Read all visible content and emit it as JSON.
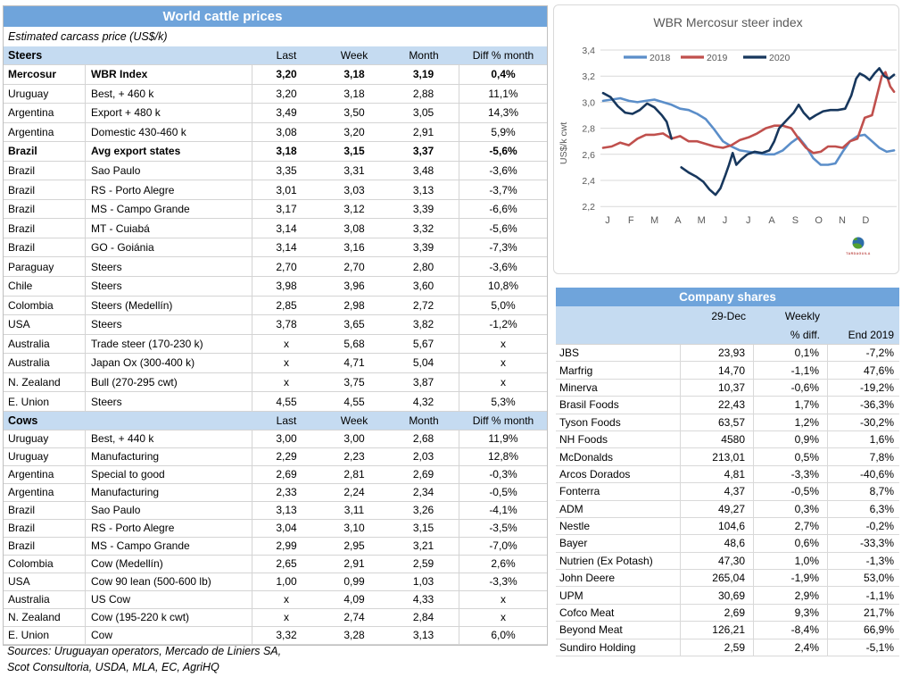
{
  "colors": {
    "title_bar_blue": "#6FA4DB",
    "header_band_blue": "#C5DBF1",
    "grid_gray": "#D4D4D4",
    "axis_text_gray": "#595959",
    "series_2018": "#5B8EC9",
    "series_2019": "#C0504D",
    "series_2020": "#17375D",
    "logo_red": "#BE4B48"
  },
  "cattle_table": {
    "title": "World cattle prices",
    "subtitle": "Estimated carcass price (US$/k)",
    "columns": [
      "Last",
      "Week",
      "Month",
      "Diff % month"
    ],
    "sections": [
      {
        "label": "Steers",
        "rows": [
          {
            "c1": "Mercosur",
            "c2": "WBR Index",
            "last": "3,20",
            "week": "3,18",
            "month": "3,19",
            "diff": "0,4%",
            "cls": "bold"
          },
          {
            "c1": "Uruguay",
            "c2": "Best, + 460 k",
            "last": "3,20",
            "week": "3,18",
            "month": "2,88",
            "diff": "11,1%"
          },
          {
            "c1": "Argentina",
            "c2": "Export + 480 k",
            "last": "3,49",
            "week": "3,50",
            "month": "3,05",
            "diff": "14,3%"
          },
          {
            "c1": "Argentina",
            "c2": "Domestic 430-460 k",
            "last": "3,08",
            "week": "3,20",
            "month": "2,91",
            "diff": "5,9%"
          },
          {
            "c1": "Brazil",
            "c2": "Avg export states",
            "last": "3,18",
            "week": "3,15",
            "month": "3,37",
            "diff": "-5,6%",
            "cls": "bold"
          },
          {
            "c1": "Brazil",
            "c2": "Sao Paulo",
            "last": "3,35",
            "week": "3,31",
            "month": "3,48",
            "diff": "-3,6%"
          },
          {
            "c1": "Brazil",
            "c2": "RS - Porto Alegre",
            "last": "3,01",
            "week": "3,03",
            "month": "3,13",
            "diff": "-3,7%"
          },
          {
            "c1": "Brazil",
            "c2": "MS - Campo Grande",
            "last": "3,17",
            "week": "3,12",
            "month": "3,39",
            "diff": "-6,6%"
          },
          {
            "c1": "Brazil",
            "c2": "MT - Cuiabá",
            "last": "3,14",
            "week": "3,08",
            "month": "3,32",
            "diff": "-5,6%"
          },
          {
            "c1": "Brazil",
            "c2": "GO - Goiánia",
            "last": "3,14",
            "week": "3,16",
            "month": "3,39",
            "diff": "-7,3%"
          },
          {
            "c1": "Paraguay",
            "c2": "Steers",
            "last": "2,70",
            "week": "2,70",
            "month": "2,80",
            "diff": "-3,6%"
          },
          {
            "c1": "Chile",
            "c2": "Steers",
            "last": "3,98",
            "week": "3,96",
            "month": "3,60",
            "diff": "10,8%"
          },
          {
            "c1": "Colombia",
            "c2": "Steers (Medellín)",
            "last": "2,85",
            "week": "2,98",
            "month": "2,72",
            "diff": "5,0%"
          },
          {
            "c1": "USA",
            "c2": "Steers",
            "last": "3,78",
            "week": "3,65",
            "month": "3,82",
            "diff": "-1,2%"
          },
          {
            "c1": "Australia",
            "c2": "Trade steer (170-230 k)",
            "last": "x",
            "week": "5,68",
            "month": "5,67",
            "diff": "x"
          },
          {
            "c1": "Australia",
            "c2": "Japan Ox (300-400 k)",
            "last": "x",
            "week": "4,71",
            "month": "5,04",
            "diff": "x"
          },
          {
            "c1": "N. Zealand",
            "c2": "Bull (270-295 cwt)",
            "last": "x",
            "week": "3,75",
            "month": "3,87",
            "diff": "x"
          },
          {
            "c1": "E. Union",
            "c2": "Steers",
            "last": "4,55",
            "week": "4,55",
            "month": "4,32",
            "diff": "5,3%"
          }
        ]
      },
      {
        "label": "Cows",
        "rows": [
          {
            "c1": "Uruguay",
            "c2": "Best, + 440 k",
            "last": "3,00",
            "week": "3,00",
            "month": "2,68",
            "diff": "11,9%"
          },
          {
            "c1": "Uruguay",
            "c2": "Manufacturing",
            "last": "2,29",
            "week": "2,23",
            "month": "2,03",
            "diff": "12,8%"
          },
          {
            "c1": "Argentina",
            "c2": "Special to good",
            "last": "2,69",
            "week": "2,81",
            "month": "2,69",
            "diff": "-0,3%"
          },
          {
            "c1": "Argentina",
            "c2": "Manufacturing",
            "last": "2,33",
            "week": "2,24",
            "month": "2,34",
            "diff": "-0,5%"
          },
          {
            "c1": "Brazil",
            "c2": "Sao Paulo",
            "last": "3,13",
            "week": "3,11",
            "month": "3,26",
            "diff": "-4,1%"
          },
          {
            "c1": "Brazil",
            "c2": "RS - Porto Alegre",
            "last": "3,04",
            "week": "3,10",
            "month": "3,15",
            "diff": "-3,5%"
          },
          {
            "c1": "Brazil",
            "c2": "MS - Campo Grande",
            "last": "2,99",
            "week": "2,95",
            "month": "3,21",
            "diff": "-7,0%"
          },
          {
            "c1": "Colombia",
            "c2": "Cow (Medellín)",
            "last": "2,65",
            "week": "2,91",
            "month": "2,59",
            "diff": "2,6%"
          },
          {
            "c1": "USA",
            "c2": "Cow 90 lean (500-600 lb)",
            "last": "1,00",
            "week": "0,99",
            "month": "1,03",
            "diff": "-3,3%"
          },
          {
            "c1": "Australia",
            "c2": "US Cow",
            "last": "x",
            "week": "4,09",
            "month": "4,33",
            "diff": "x"
          },
          {
            "c1": "N. Zealand",
            "c2": "Cow (195-220 k cwt)",
            "last": "x",
            "week": "2,74",
            "month": "2,84",
            "diff": "x"
          },
          {
            "c1": "E. Union",
            "c2": "Cow",
            "last": "3,32",
            "week": "3,28",
            "month": "3,13",
            "diff": "6,0%"
          }
        ]
      }
    ],
    "sources_line1": "Sources: Uruguayan operators, Mercado de Liniers SA,",
    "sources_line2": "Scot Consultoria, USDA, MLA, EC, AgriHQ"
  },
  "chart_data": {
    "type": "line",
    "title": "WBR Mercosur steer index",
    "ylabel": "US$/k cwt",
    "ylim": [
      2.2,
      3.4
    ],
    "yticks": [
      3.4,
      3.2,
      3.0,
      2.8,
      2.6,
      2.4,
      2.2
    ],
    "ytick_labels": [
      "3,4",
      "3,2",
      "3,0",
      "2,8",
      "2,6",
      "2,4",
      "2,2"
    ],
    "xlabels": [
      "J",
      "F",
      "M",
      "A",
      "M",
      "J",
      "J",
      "A",
      "S",
      "O",
      "N",
      "D"
    ],
    "x_unit": "month, 0 = early Jan to 11.9 = late Dec",
    "grid": true,
    "legend_position": "top",
    "logo_text": "TARDAGUILA",
    "series": [
      {
        "name": "2018",
        "color": "#5B8EC9",
        "segments": [
          [
            [
              0.0,
              3.01
            ],
            [
              0.35,
              3.02
            ],
            [
              0.7,
              3.03
            ],
            [
              1.05,
              3.01
            ],
            [
              1.4,
              3.0
            ],
            [
              1.75,
              3.01
            ],
            [
              2.1,
              3.02
            ],
            [
              2.45,
              3.0
            ],
            [
              2.8,
              2.98
            ],
            [
              3.15,
              2.95
            ],
            [
              3.5,
              2.94
            ],
            [
              3.85,
              2.91
            ],
            [
              4.2,
              2.87
            ],
            [
              4.55,
              2.79
            ],
            [
              4.9,
              2.7
            ],
            [
              5.25,
              2.66
            ],
            [
              5.6,
              2.63
            ],
            [
              5.95,
              2.62
            ],
            [
              6.3,
              2.61
            ],
            [
              6.65,
              2.6
            ],
            [
              7.0,
              2.6
            ],
            [
              7.35,
              2.63
            ],
            [
              7.7,
              2.69
            ],
            [
              8.0,
              2.73
            ],
            [
              8.3,
              2.66
            ],
            [
              8.6,
              2.57
            ],
            [
              8.9,
              2.52
            ],
            [
              9.2,
              2.52
            ],
            [
              9.5,
              2.53
            ],
            [
              9.8,
              2.62
            ],
            [
              10.1,
              2.7
            ],
            [
              10.4,
              2.74
            ],
            [
              10.7,
              2.75
            ],
            [
              11.0,
              2.7
            ],
            [
              11.3,
              2.65
            ],
            [
              11.6,
              2.62
            ],
            [
              11.9,
              2.63
            ]
          ]
        ]
      },
      {
        "name": "2019",
        "color": "#C0504D",
        "segments": [
          [
            [
              0.0,
              2.65
            ],
            [
              0.35,
              2.66
            ],
            [
              0.7,
              2.69
            ],
            [
              1.05,
              2.67
            ],
            [
              1.4,
              2.72
            ],
            [
              1.75,
              2.75
            ],
            [
              2.1,
              2.75
            ],
            [
              2.45,
              2.76
            ],
            [
              2.8,
              2.72
            ],
            [
              3.15,
              2.74
            ],
            [
              3.5,
              2.7
            ],
            [
              3.85,
              2.7
            ],
            [
              4.2,
              2.68
            ],
            [
              4.55,
              2.66
            ],
            [
              4.9,
              2.65
            ],
            [
              5.25,
              2.67
            ],
            [
              5.6,
              2.71
            ],
            [
              5.95,
              2.73
            ],
            [
              6.3,
              2.76
            ],
            [
              6.65,
              2.8
            ],
            [
              7.0,
              2.82
            ],
            [
              7.35,
              2.82
            ],
            [
              7.7,
              2.8
            ],
            [
              8.0,
              2.72
            ],
            [
              8.3,
              2.65
            ],
            [
              8.6,
              2.61
            ],
            [
              8.9,
              2.62
            ],
            [
              9.2,
              2.66
            ],
            [
              9.5,
              2.66
            ],
            [
              9.8,
              2.65
            ],
            [
              10.1,
              2.7
            ],
            [
              10.4,
              2.72
            ],
            [
              10.7,
              2.88
            ],
            [
              11.0,
              2.9
            ],
            [
              11.2,
              3.05
            ],
            [
              11.4,
              3.2
            ],
            [
              11.55,
              3.23
            ],
            [
              11.75,
              3.12
            ],
            [
              11.9,
              3.08
            ]
          ]
        ]
      },
      {
        "name": "2020",
        "color": "#17375D",
        "segments": [
          [
            [
              0.0,
              3.07
            ],
            [
              0.3,
              3.04
            ],
            [
              0.6,
              2.97
            ],
            [
              0.9,
              2.92
            ],
            [
              1.2,
              2.91
            ],
            [
              1.5,
              2.94
            ],
            [
              1.8,
              2.99
            ],
            [
              2.1,
              2.96
            ],
            [
              2.4,
              2.9
            ],
            [
              2.6,
              2.85
            ],
            [
              2.8,
              2.72
            ]
          ],
          [
            [
              3.2,
              2.5
            ],
            [
              3.5,
              2.46
            ],
            [
              3.8,
              2.43
            ],
            [
              4.1,
              2.39
            ],
            [
              4.35,
              2.33
            ],
            [
              4.6,
              2.29
            ],
            [
              4.8,
              2.34
            ],
            [
              5.0,
              2.44
            ],
            [
              5.15,
              2.52
            ],
            [
              5.3,
              2.61
            ],
            [
              5.45,
              2.52
            ],
            [
              5.65,
              2.56
            ],
            [
              5.9,
              2.6
            ],
            [
              6.2,
              2.62
            ],
            [
              6.5,
              2.61
            ],
            [
              6.8,
              2.63
            ],
            [
              7.0,
              2.7
            ],
            [
              7.2,
              2.8
            ],
            [
              7.5,
              2.86
            ],
            [
              7.8,
              2.92
            ],
            [
              8.0,
              2.98
            ],
            [
              8.2,
              2.92
            ],
            [
              8.45,
              2.87
            ],
            [
              8.7,
              2.9
            ],
            [
              9.0,
              2.93
            ],
            [
              9.3,
              2.94
            ],
            [
              9.6,
              2.94
            ],
            [
              9.9,
              2.95
            ],
            [
              10.15,
              3.05
            ],
            [
              10.35,
              3.18
            ],
            [
              10.5,
              3.22
            ],
            [
              10.7,
              3.2
            ],
            [
              10.9,
              3.17
            ],
            [
              11.1,
              3.22
            ],
            [
              11.3,
              3.26
            ],
            [
              11.5,
              3.2
            ],
            [
              11.7,
              3.18
            ],
            [
              11.9,
              3.21
            ]
          ]
        ]
      }
    ]
  },
  "company_table": {
    "title": "Company shares",
    "header": {
      "date_col": "29-Dec",
      "weekly_line1": "Weekly",
      "weekly_line2": "% diff.",
      "end_col": "End 2019"
    },
    "rows": [
      {
        "name": "JBS",
        "price": "23,93",
        "weekly": "0,1%",
        "end": "-7,2%"
      },
      {
        "name": "Marfrig",
        "price": "14,70",
        "weekly": "-1,1%",
        "end": "47,6%"
      },
      {
        "name": "Minerva",
        "price": "10,37",
        "weekly": "-0,6%",
        "end": "-19,2%"
      },
      {
        "name": "Brasil Foods",
        "price": "22,43",
        "weekly": "1,7%",
        "end": "-36,3%"
      },
      {
        "name": "Tyson Foods",
        "price": "63,57",
        "weekly": "1,2%",
        "end": "-30,2%"
      },
      {
        "name": "NH Foods",
        "price": "4580",
        "weekly": "0,9%",
        "end": "1,6%"
      },
      {
        "name": "McDonalds",
        "price": "213,01",
        "weekly": "0,5%",
        "end": "7,8%"
      },
      {
        "name": "Arcos Dorados",
        "price": "4,81",
        "weekly": "-3,3%",
        "end": "-40,6%"
      },
      {
        "name": "Fonterra",
        "price": "4,37",
        "weekly": "-0,5%",
        "end": "8,7%"
      },
      {
        "name": "ADM",
        "price": "49,27",
        "weekly": "0,3%",
        "end": "6,3%"
      },
      {
        "name": "Nestle",
        "price": "104,6",
        "weekly": "2,7%",
        "end": "-0,2%"
      },
      {
        "name": "Bayer",
        "price": "48,6",
        "weekly": "0,6%",
        "end": "-33,3%"
      },
      {
        "name": "Nutrien (Ex Potash)",
        "price": "47,30",
        "weekly": "1,0%",
        "end": "-1,3%"
      },
      {
        "name": "John Deere",
        "price": "265,04",
        "weekly": "-1,9%",
        "end": "53,0%"
      },
      {
        "name": "UPM",
        "price": "30,69",
        "weekly": "2,9%",
        "end": "-1,1%"
      },
      {
        "name": "Cofco Meat",
        "price": "2,69",
        "weekly": "9,3%",
        "end": "21,7%"
      },
      {
        "name": "Beyond Meat",
        "price": "126,21",
        "weekly": "-8,4%",
        "end": "66,9%"
      },
      {
        "name": "Sundiro Holding",
        "price": "2,59",
        "weekly": "2,4%",
        "end": "-5,1%"
      }
    ]
  }
}
